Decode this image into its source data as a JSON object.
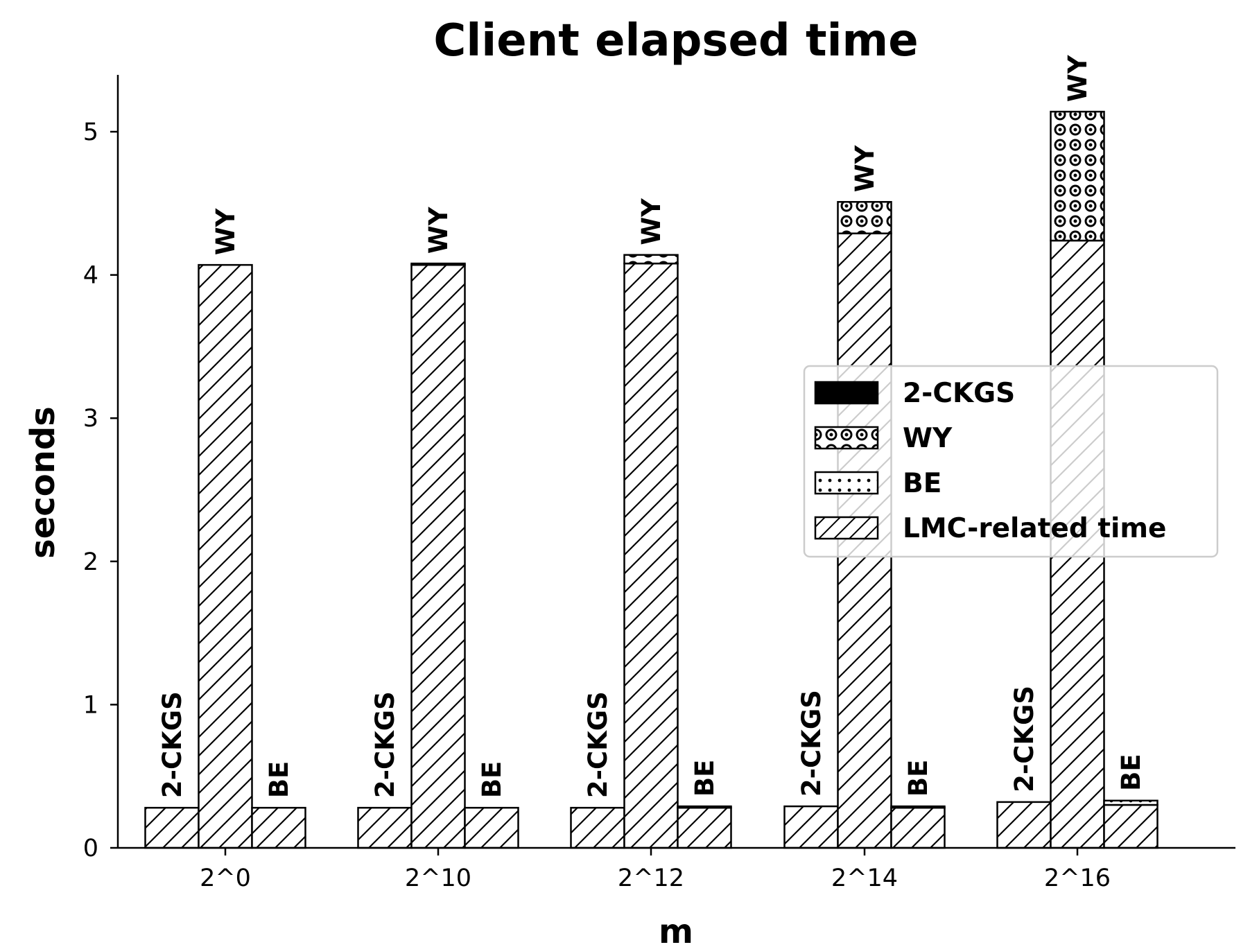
{
  "chart_data": {
    "type": "bar",
    "title": "Client elapsed time",
    "xlabel": "m",
    "ylabel": "seconds",
    "ylim": [
      0,
      5.4
    ],
    "yticks": [
      0,
      1,
      2,
      3,
      4,
      5
    ],
    "categories": [
      "2^0",
      "2^10",
      "2^12",
      "2^14",
      "2^16"
    ],
    "grid": false,
    "legend_position": "center-right",
    "methods": [
      "2-CKGS",
      "WY",
      "BE"
    ],
    "legend": [
      "2-CKGS",
      "WY",
      "BE",
      "LMC-related time"
    ],
    "series": [
      {
        "name": "LMC-related time",
        "pattern": "hatch",
        "values": {
          "2-CKGS": [
            0.28,
            0.28,
            0.28,
            0.29,
            0.32
          ],
          "WY": [
            4.07,
            4.07,
            4.08,
            4.29,
            4.24
          ],
          "BE": [
            0.28,
            0.28,
            0.28,
            0.28,
            0.3
          ]
        }
      },
      {
        "name": "2-CKGS",
        "pattern": "solid",
        "values": [
          0.0,
          0.0,
          0.0,
          0.0,
          0.0
        ]
      },
      {
        "name": "WY",
        "pattern": "rings",
        "values": [
          0.0,
          0.01,
          0.06,
          0.22,
          0.9
        ]
      },
      {
        "name": "BE",
        "pattern": "dots",
        "values": [
          0.0,
          0.0,
          0.01,
          0.01,
          0.03
        ]
      }
    ]
  }
}
